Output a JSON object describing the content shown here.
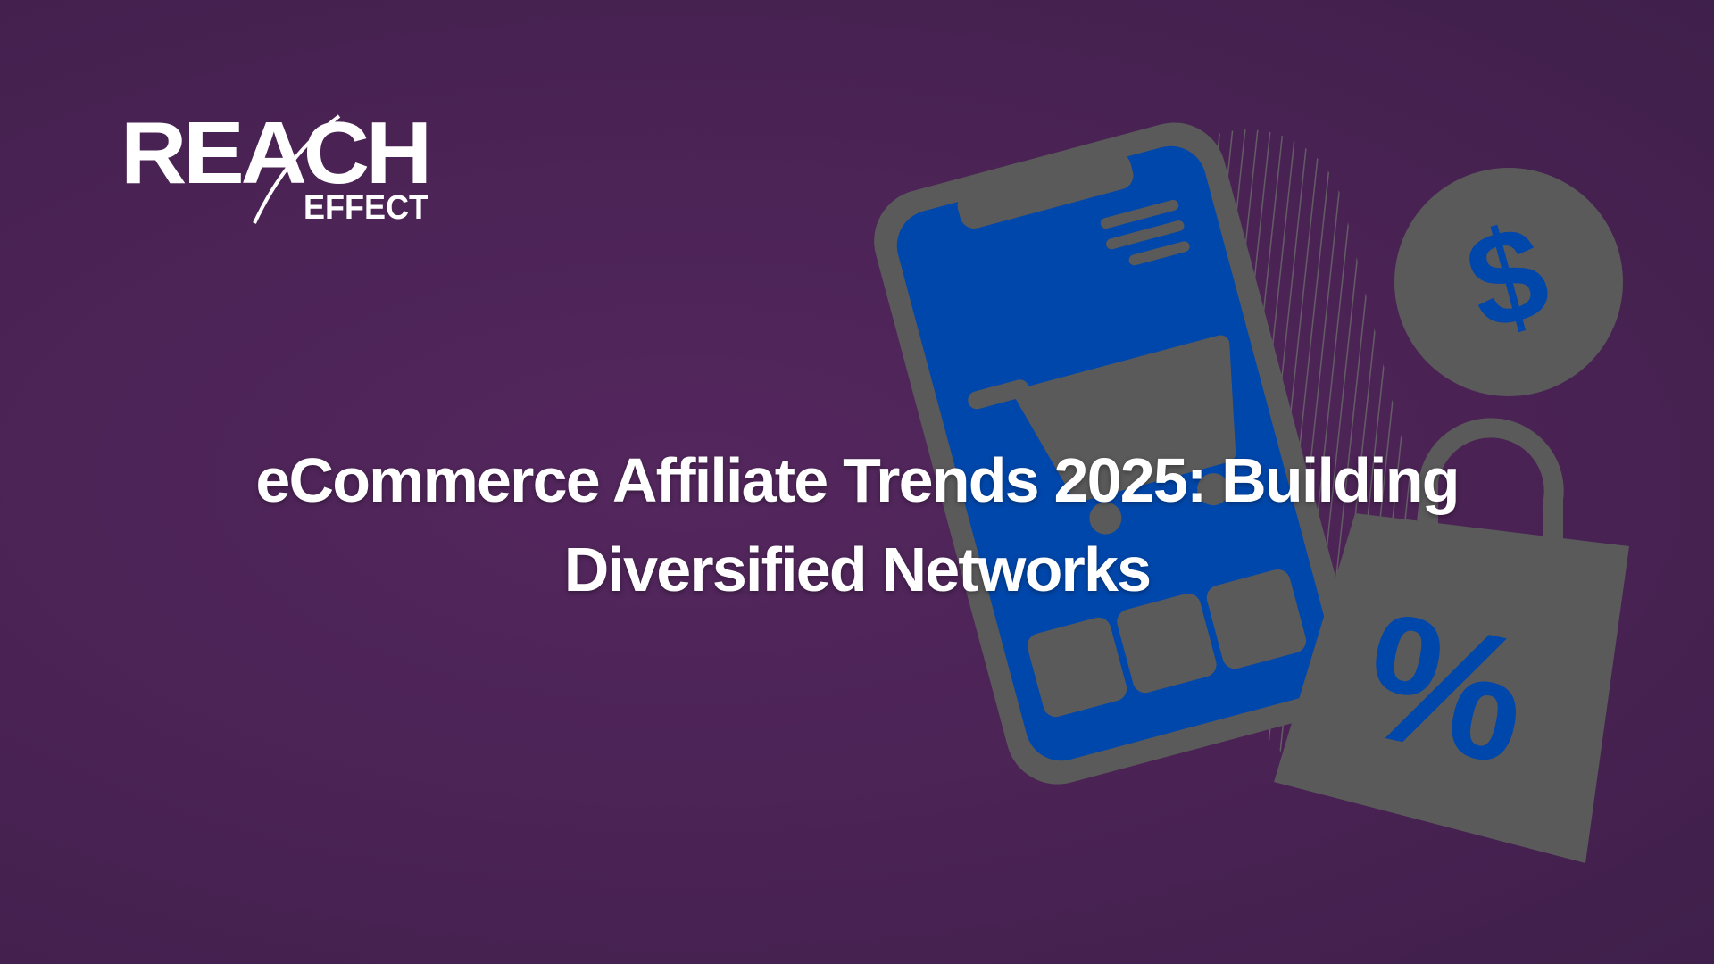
{
  "logo": {
    "primary": "REACH",
    "secondary": "EFFECT"
  },
  "title": {
    "line1": "eCommerce Affiliate Trends 2025: Building",
    "line2": "Diversified Networks"
  },
  "colors": {
    "background": "#4a2354",
    "illustration_gray": "#5a5a5a",
    "accent_blue": "#0047ab",
    "text": "#ffffff"
  },
  "icons": [
    "smartphone-icon",
    "shopping-cart-icon",
    "dollar-coin-icon",
    "shopping-bag-percent-icon"
  ]
}
